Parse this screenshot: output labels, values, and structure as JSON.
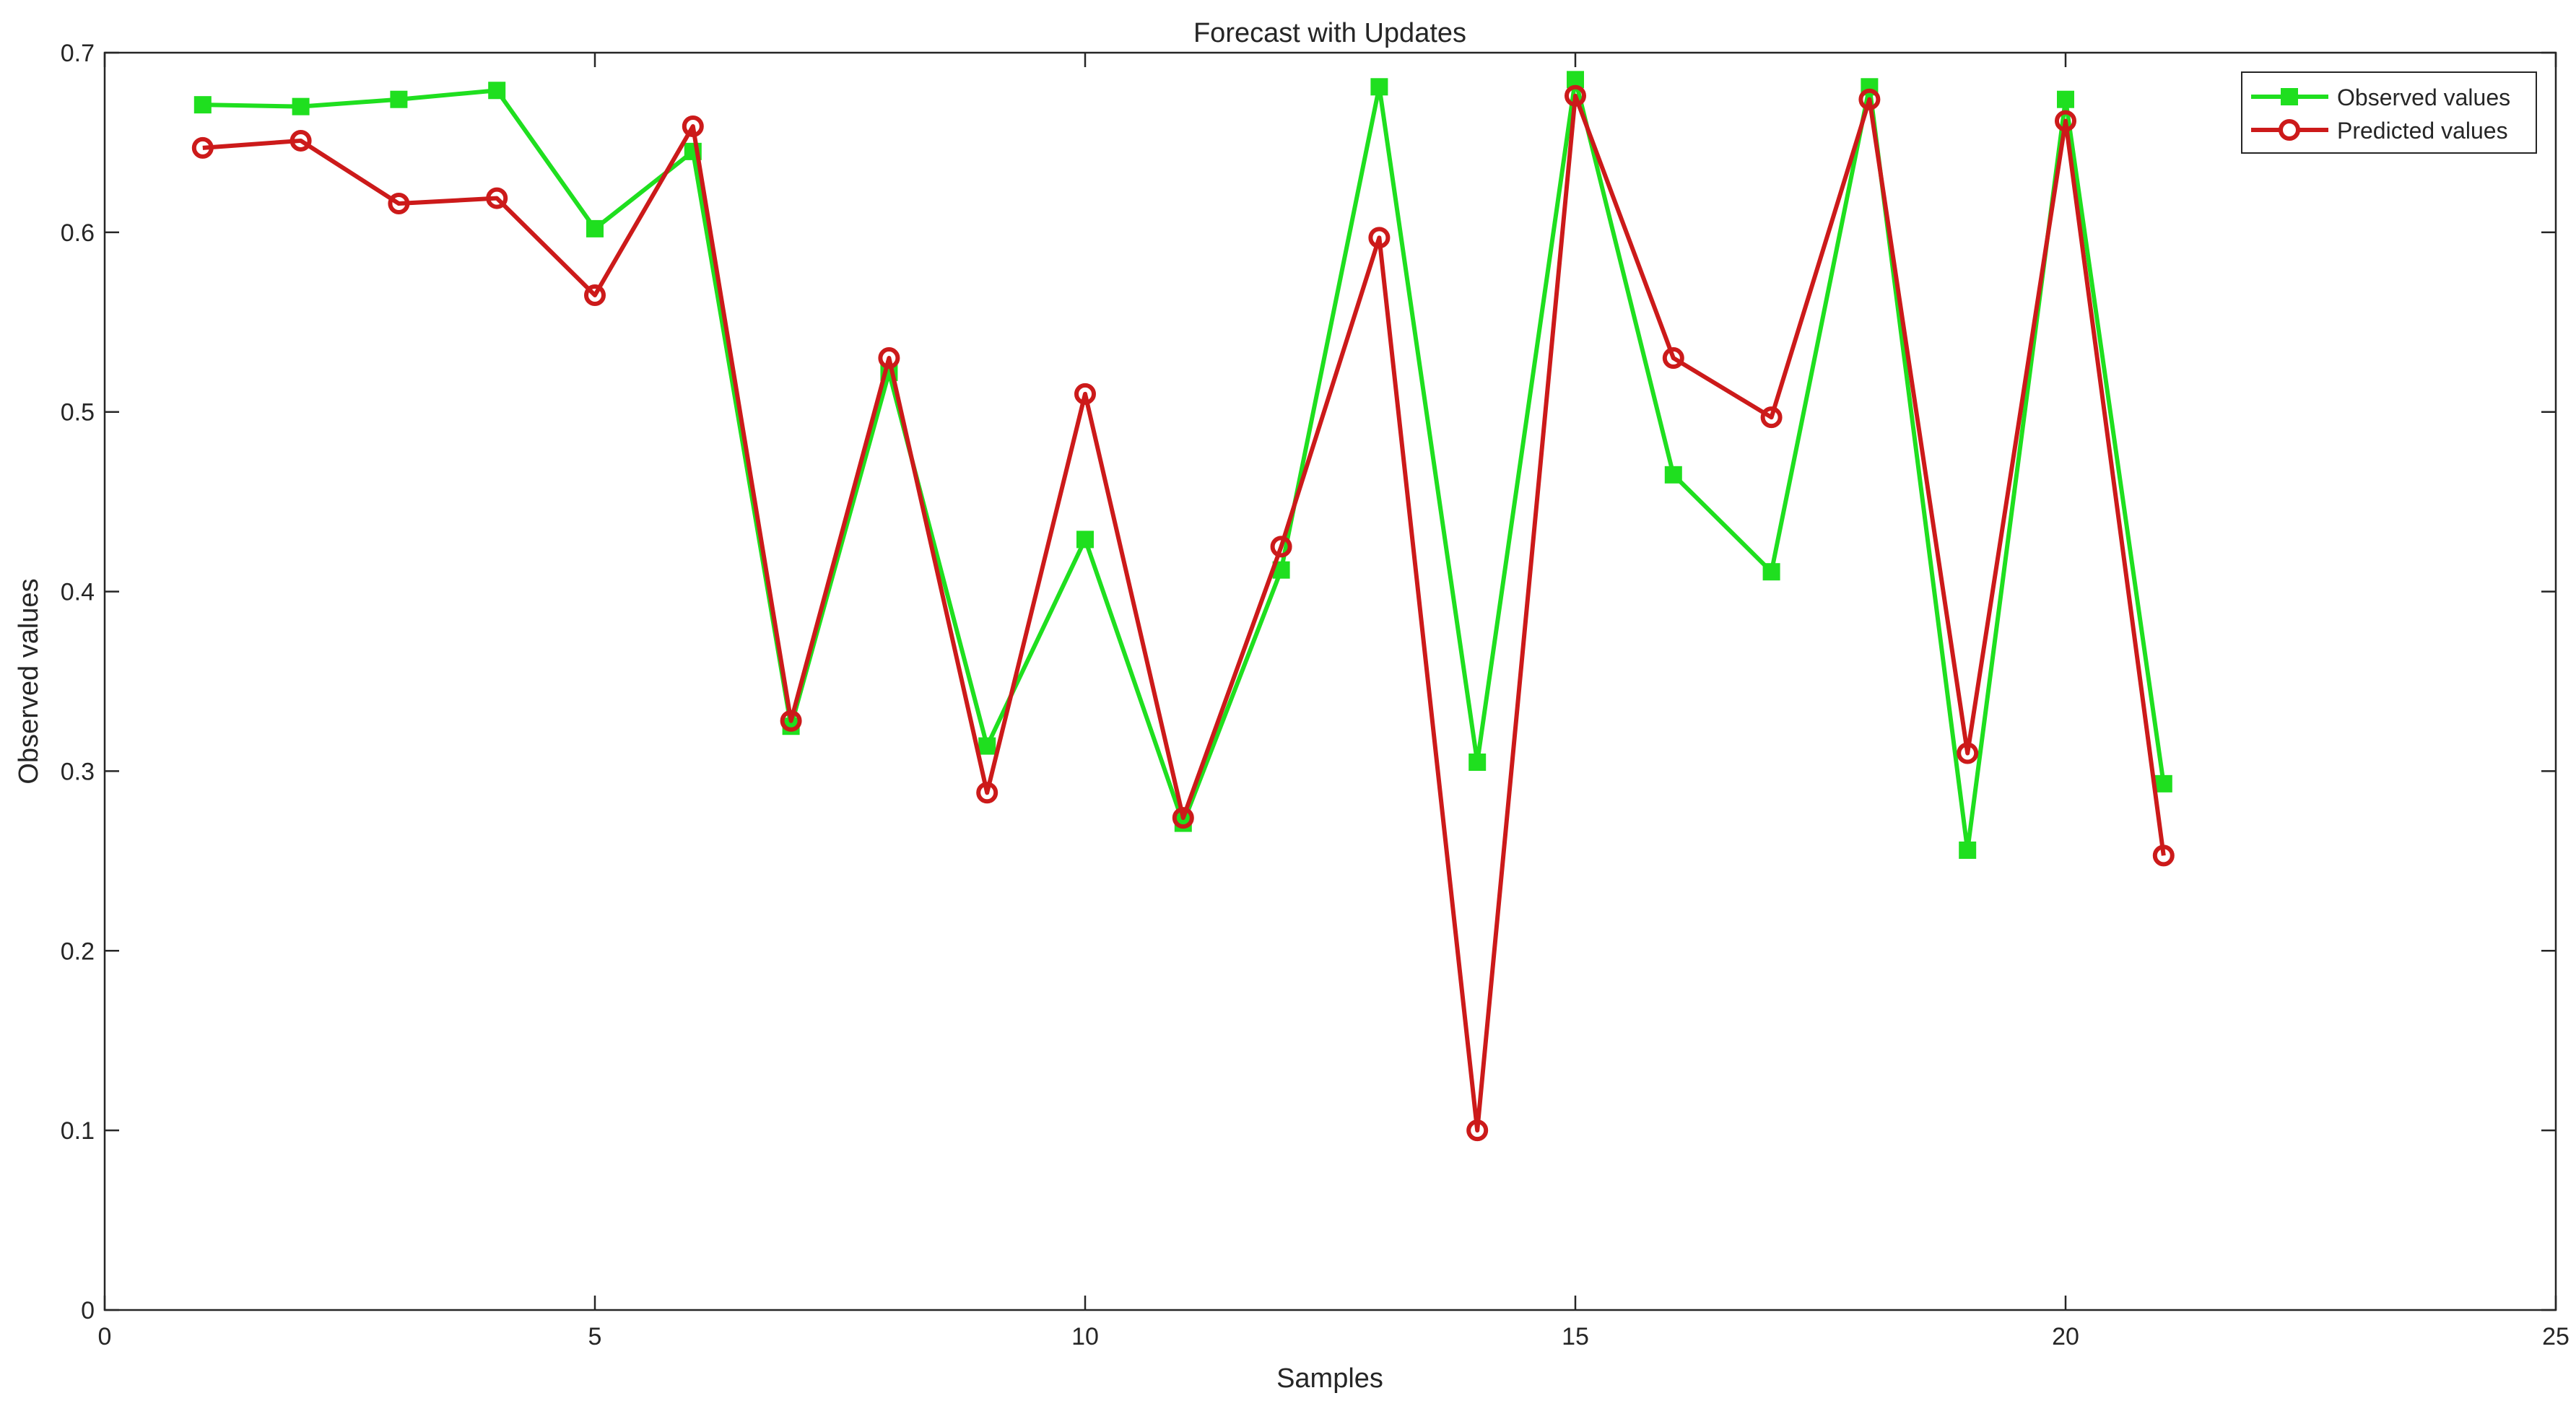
{
  "chart_data": {
    "type": "line",
    "title": "Forecast with Updates",
    "xlabel": "Samples",
    "ylabel": "Observed values",
    "xlim": [
      0,
      25
    ],
    "ylim": [
      0,
      0.7
    ],
    "xticks": [
      0,
      5,
      10,
      15,
      20,
      25
    ],
    "yticks": [
      0,
      0.1,
      0.2,
      0.3,
      0.4,
      0.5,
      0.6,
      0.7
    ],
    "xtick_labels": [
      "0",
      "5",
      "10",
      "15",
      "20",
      "25"
    ],
    "ytick_labels": [
      "0",
      "0.1",
      "0.2",
      "0.3",
      "0.4",
      "0.5",
      "0.6",
      "0.7"
    ],
    "grid": false,
    "legend_position": "top-right",
    "x": [
      1,
      2,
      3,
      4,
      5,
      6,
      7,
      8,
      9,
      10,
      11,
      12,
      13,
      14,
      15,
      16,
      17,
      18,
      19,
      20,
      21
    ],
    "series": [
      {
        "name": "Observed values",
        "color": "#1fdf1f",
        "marker": "square",
        "values": [
          0.671,
          0.67,
          0.674,
          0.679,
          0.602,
          0.645,
          0.325,
          0.522,
          0.314,
          0.429,
          0.271,
          0.412,
          0.681,
          0.305,
          0.685,
          0.465,
          0.411,
          0.681,
          0.256,
          0.674,
          0.293
        ]
      },
      {
        "name": "Predicted values",
        "color": "#cc1a1a",
        "marker": "circle",
        "values": [
          0.647,
          0.651,
          0.616,
          0.619,
          0.565,
          0.659,
          0.328,
          0.53,
          0.288,
          0.51,
          0.274,
          0.425,
          0.597,
          0.1,
          0.676,
          0.53,
          0.497,
          0.674,
          0.31,
          0.662,
          0.253
        ]
      }
    ]
  }
}
